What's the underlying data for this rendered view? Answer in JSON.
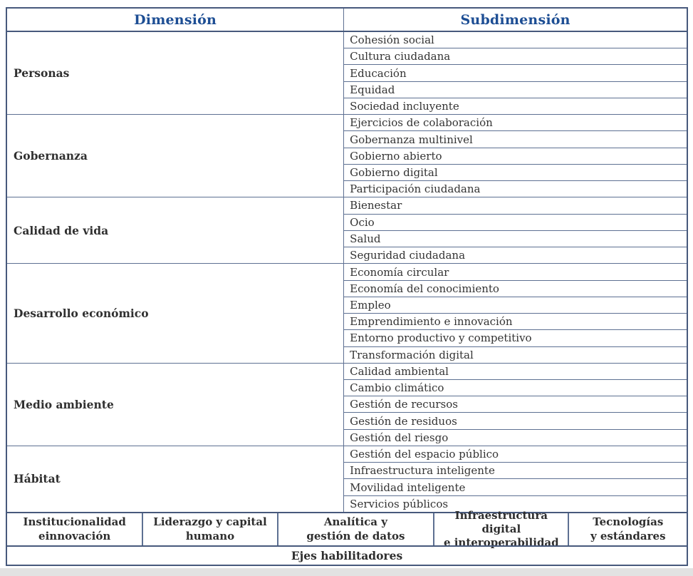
{
  "colors": {
    "header_text": "#1d4e94",
    "border_outer": "#47597c",
    "border_inner": "#5d7092",
    "body_text": "#333333",
    "page_edge": "#e2e2e2"
  },
  "header": {
    "dimension": "Dimensión",
    "subdimension": "Subdimensión"
  },
  "sections": [
    {
      "dimension": "Personas",
      "subdimensions": [
        "Cohesión social",
        "Cultura ciudadana",
        "Educación",
        "Equidad",
        "Sociedad incluyente"
      ]
    },
    {
      "dimension": "Gobernanza",
      "subdimensions": [
        "Ejercicios de colaboración",
        "Gobernanza multinivel",
        "Gobierno abierto",
        "Gobierno digital",
        "Participación ciudadana"
      ]
    },
    {
      "dimension": "Calidad de vida",
      "subdimensions": [
        "Bienestar",
        "Ocio",
        "Salud",
        "Seguridad ciudadana"
      ]
    },
    {
      "dimension": "Desarrollo económico",
      "subdimensions": [
        "Economía circular",
        "Economía del conocimiento",
        "Empleo",
        "Emprendimiento e innovación",
        "Entorno productivo y competitivo",
        "Transformación digital"
      ]
    },
    {
      "dimension": "Medio ambiente",
      "subdimensions": [
        "Calidad ambiental",
        "Cambio climático",
        "Gestión de recursos",
        "Gestión de residuos",
        "Gestión del riesgo"
      ]
    },
    {
      "dimension": "Hábitat",
      "subdimensions": [
        "Gestión del espacio público",
        "Infraestructura inteligente",
        "Movilidad inteligente",
        "Servicios públicos"
      ]
    }
  ],
  "enablers": [
    "Institucionalidad\neinnovación",
    "Liderazgo y capital\nhumano",
    "Analítica y\ngestión de datos",
    "Infraestructura digital\ne interoperabilidad",
    "Tecnologías\ny estándares"
  ],
  "footer": {
    "label": "Ejes habilitadores"
  }
}
